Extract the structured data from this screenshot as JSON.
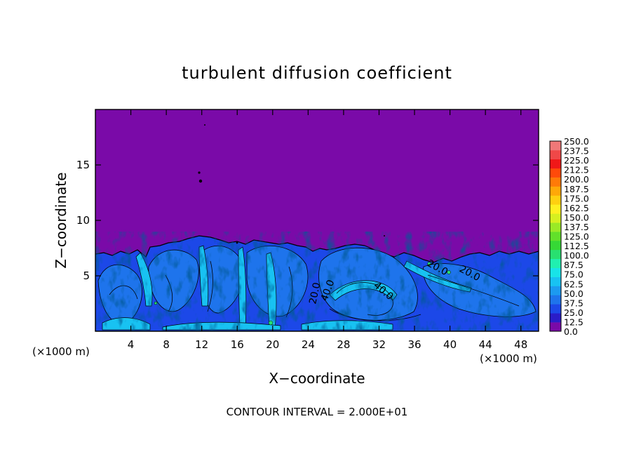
{
  "chart_data": {
    "type": "heatmap",
    "title": "turbulent diffusion coefficient",
    "xlabel": "X−coordinate",
    "ylabel": "Z−coordinate",
    "x_unit_left": "(×1000 m)",
    "x_unit_right": "(×1000 m)",
    "xlim": [
      0,
      50
    ],
    "ylim": [
      0,
      20
    ],
    "x_ticks": [
      4,
      8,
      12,
      16,
      20,
      24,
      28,
      32,
      36,
      40,
      44,
      48
    ],
    "y_ticks": [
      5,
      10,
      15
    ],
    "footer": "CONTOUR INTERVAL = 2.000E+01",
    "contour_labels": [
      "20.0",
      "40.0",
      "20.0",
      "40.0",
      "20.0"
    ],
    "colorbar": {
      "min": 0,
      "max": 250,
      "step": 12.5,
      "labels": [
        "0.0",
        "12.5",
        "25.0",
        "37.5",
        "50.0",
        "62.5",
        "75.0",
        "87.5",
        "100.0",
        "112.5",
        "125.0",
        "137.5",
        "150.0",
        "162.5",
        "175.0",
        "187.5",
        "200.0",
        "212.5",
        "225.0",
        "237.5",
        "250.0"
      ],
      "colors": [
        "#7a0aa8",
        "#2a1cc8",
        "#1c48e8",
        "#1e74ec",
        "#1c9af0",
        "#18c2f2",
        "#18e4e8",
        "#20f0b0",
        "#28e070",
        "#36d836",
        "#62e02a",
        "#9aea26",
        "#d6f020",
        "#fff020",
        "#ffd010",
        "#ffa808",
        "#ff7a08",
        "#ff4a0a",
        "#f01818",
        "#f04848",
        "#f07878"
      ]
    },
    "background_value": 0.0
  }
}
